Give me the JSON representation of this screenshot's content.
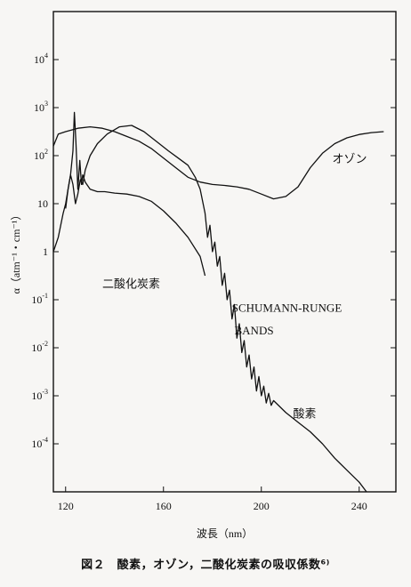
{
  "chart_data": {
    "type": "line",
    "xlabel": "波長（nm）",
    "ylabel": "α（atm⁻¹・cm⁻¹）",
    "xlim": [
      115,
      255
    ],
    "ylim_log10": [
      -5,
      5
    ],
    "log_scale_y": true,
    "grid": false,
    "x_ticks": [
      "120",
      "160",
      "200",
      "240"
    ],
    "y_ticks": [
      {
        "base": "10",
        "exp": "4"
      },
      {
        "base": "10",
        "exp": "3"
      },
      {
        "base": "10",
        "exp": "2"
      },
      {
        "base": "10",
        "exp": ""
      },
      {
        "base": "1",
        "exp": ""
      },
      {
        "base": "10",
        "exp": "-1"
      },
      {
        "base": "10",
        "exp": "-2"
      },
      {
        "base": "10",
        "exp": "-3"
      },
      {
        "base": "10",
        "exp": "-4"
      }
    ],
    "annotations": {
      "ozone": "オゾン",
      "co2": "二酸化炭素",
      "oxygen": "酸素",
      "schumann_line1": "SCHUMANN-RUNGE",
      "schumann_line2": "BANDS"
    },
    "series": [
      {
        "points": [
          [
            115,
            2.2
          ],
          [
            117,
            2.45
          ],
          [
            120,
            2.5
          ],
          [
            125,
            2.57
          ],
          [
            130,
            2.6
          ],
          [
            135,
            2.57
          ],
          [
            140,
            2.5
          ],
          [
            145,
            2.4
          ],
          [
            150,
            2.3
          ],
          [
            155,
            2.15
          ],
          [
            160,
            1.95
          ],
          [
            165,
            1.75
          ],
          [
            170,
            1.55
          ],
          [
            175,
            1.45
          ],
          [
            180,
            1.4
          ],
          [
            185,
            1.38
          ],
          [
            190,
            1.35
          ],
          [
            195,
            1.3
          ],
          [
            200,
            1.2
          ],
          [
            205,
            1.1
          ],
          [
            210,
            1.15
          ],
          [
            215,
            1.35
          ],
          [
            220,
            1.75
          ],
          [
            225,
            2.05
          ],
          [
            230,
            2.25
          ],
          [
            235,
            2.37
          ],
          [
            240,
            2.44
          ],
          [
            245,
            2.48
          ],
          [
            250,
            2.5
          ]
        ]
      },
      {
        "points": [
          [
            120,
            0.9
          ],
          [
            121,
            1.3
          ],
          [
            122,
            1.6
          ],
          [
            123,
            1.4
          ],
          [
            124,
            1.0
          ],
          [
            125,
            1.2
          ],
          [
            126,
            1.5
          ],
          [
            127,
            1.4
          ],
          [
            128,
            1.7
          ],
          [
            130,
            2.0
          ],
          [
            133,
            2.25
          ],
          [
            137,
            2.45
          ],
          [
            142,
            2.6
          ],
          [
            147,
            2.63
          ],
          [
            152,
            2.5
          ],
          [
            157,
            2.3
          ],
          [
            162,
            2.1
          ],
          [
            166,
            1.95
          ],
          [
            170,
            1.8
          ],
          [
            173,
            1.55
          ],
          [
            175,
            1.3
          ],
          [
            177,
            0.8
          ],
          [
            178,
            0.3
          ],
          [
            179,
            0.55
          ],
          [
            180,
            0.0
          ],
          [
            181,
            0.2
          ],
          [
            182,
            -0.3
          ],
          [
            183,
            -0.1
          ],
          [
            184,
            -0.7
          ],
          [
            185,
            -0.45
          ],
          [
            186,
            -1.0
          ],
          [
            187,
            -0.8
          ],
          [
            188,
            -1.4
          ],
          [
            189,
            -1.1
          ],
          [
            190,
            -1.8
          ],
          [
            191,
            -1.5
          ],
          [
            192,
            -2.1
          ],
          [
            193,
            -1.85
          ],
          [
            194,
            -2.4
          ],
          [
            195,
            -2.15
          ],
          [
            196,
            -2.65
          ],
          [
            197,
            -2.4
          ],
          [
            198,
            -2.9
          ],
          [
            199,
            -2.6
          ],
          [
            200,
            -3.0
          ],
          [
            201,
            -2.8
          ],
          [
            202,
            -3.15
          ],
          [
            203,
            -2.95
          ],
          [
            204,
            -3.2
          ],
          [
            205,
            -3.1
          ],
          [
            210,
            -3.35
          ],
          [
            215,
            -3.55
          ],
          [
            220,
            -3.75
          ],
          [
            225,
            -4.0
          ],
          [
            230,
            -4.3
          ],
          [
            235,
            -4.55
          ],
          [
            240,
            -4.8
          ],
          [
            243,
            -5.0
          ]
        ]
      },
      {
        "points": [
          [
            115,
            0.0
          ],
          [
            117,
            0.3
          ],
          [
            119,
            0.8
          ],
          [
            120,
            1.0
          ],
          [
            121,
            1.3
          ],
          [
            122,
            1.6
          ],
          [
            123,
            2.1
          ],
          [
            123.6,
            2.9
          ],
          [
            124.2,
            2.3
          ],
          [
            125,
            1.3
          ],
          [
            125.8,
            1.9
          ],
          [
            126.5,
            1.4
          ],
          [
            127,
            1.6
          ],
          [
            128,
            1.45
          ],
          [
            130,
            1.3
          ],
          [
            133,
            1.25
          ],
          [
            136,
            1.25
          ],
          [
            140,
            1.22
          ],
          [
            145,
            1.2
          ],
          [
            150,
            1.15
          ],
          [
            155,
            1.05
          ],
          [
            160,
            0.85
          ],
          [
            165,
            0.6
          ],
          [
            170,
            0.3
          ],
          [
            175,
            -0.1
          ],
          [
            177,
            -0.5
          ]
        ]
      }
    ]
  },
  "caption": "図２　酸素，オゾン，二酸化炭素の吸収係数⁶⁾"
}
